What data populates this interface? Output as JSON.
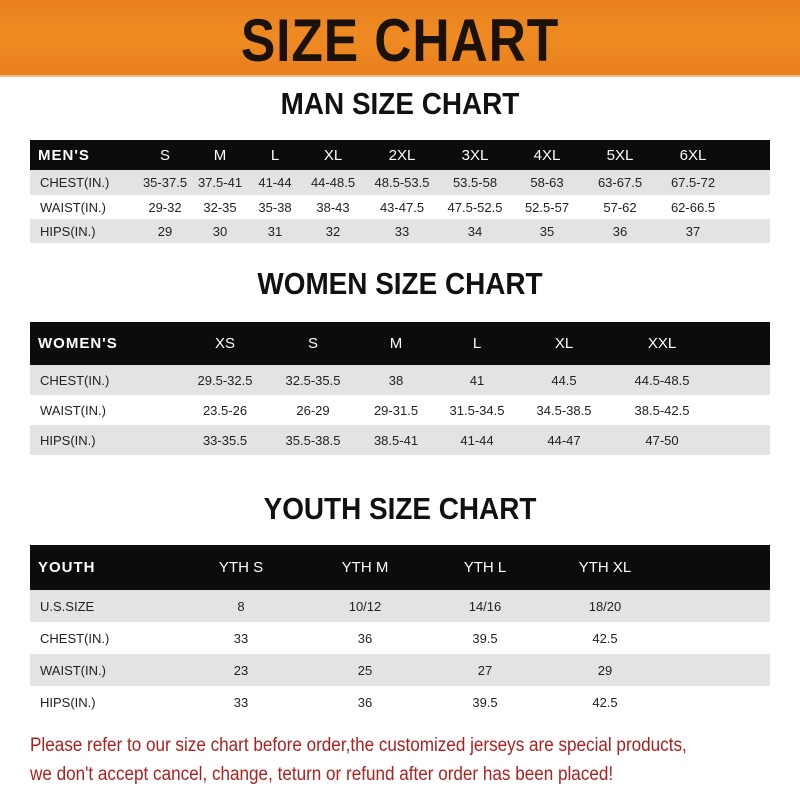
{
  "banner": {
    "title": "SIZE CHART",
    "color": "#ef8a22"
  },
  "men": {
    "title": "MAN SIZE CHART",
    "header": [
      "MEN'S",
      "S",
      "M",
      "L",
      "XL",
      "2XL",
      "3XL",
      "4XL",
      "5XL",
      "6XL"
    ],
    "rows": [
      [
        "CHEST(IN.)",
        "35-37.5",
        "37.5-41",
        "41-44",
        "44-48.5",
        "48.5-53.5",
        "53.5-58",
        "58-63",
        "63-67.5",
        "67.5-72"
      ],
      [
        "WAIST(IN.)",
        "29-32",
        "32-35",
        "35-38",
        "38-43",
        "43-47.5",
        "47.5-52.5",
        "52.5-57",
        "57-62",
        "62-66.5"
      ],
      [
        "HIPS(IN.)",
        "29",
        "30",
        "31",
        "32",
        "33",
        "34",
        "35",
        "36",
        "37"
      ]
    ]
  },
  "women": {
    "title": "WOMEN SIZE CHART",
    "header": [
      "WOMEN'S",
      "XS",
      "S",
      "M",
      "L",
      "XL",
      "XXL"
    ],
    "rows": [
      [
        "CHEST(IN.)",
        "29.5-32.5",
        "32.5-35.5",
        "38",
        "41",
        "44.5",
        "44.5-48.5"
      ],
      [
        "WAIST(IN.)",
        "23.5-26",
        "26-29",
        "29-31.5",
        "31.5-34.5",
        "34.5-38.5",
        "38.5-42.5"
      ],
      [
        "HIPS(IN.)",
        "33-35.5",
        "35.5-38.5",
        "38.5-41",
        "41-44",
        "44-47",
        "47-50"
      ]
    ]
  },
  "youth": {
    "title": "YOUTH SIZE CHART",
    "header": [
      "YOUTH",
      "YTH S",
      "YTH M",
      "YTH L",
      "YTH XL"
    ],
    "rows": [
      [
        "U.S.SIZE",
        "8",
        "10/12",
        "14/16",
        "18/20"
      ],
      [
        "CHEST(IN.)",
        "33",
        "36",
        "39.5",
        "42.5"
      ],
      [
        "WAIST(IN.)",
        "23",
        "25",
        "27",
        "29"
      ],
      [
        "HIPS(IN.)",
        "33",
        "36",
        "39.5",
        "42.5"
      ]
    ]
  },
  "notice": {
    "line1": "Please refer to our size chart before order,the customized jerseys are special products,",
    "line2": "we don't accept cancel, change, teturn or refund after order has been placed!",
    "color": "#b01e1e"
  }
}
